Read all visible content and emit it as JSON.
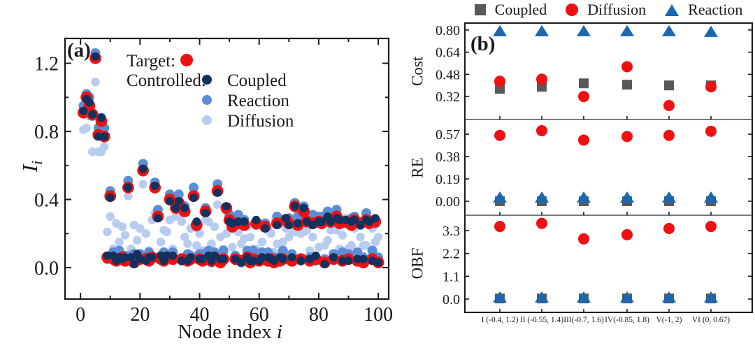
{
  "panel_a": {
    "label": "(a)",
    "xlabel_main": "Node index ",
    "xlabel_italic": "i",
    "ylabel_main": "I",
    "ylabel_sub": "i",
    "legend": {
      "target_label": "Target:",
      "controlled_label": "Controlled:",
      "target_color": "#ee1111",
      "items": [
        {
          "label": "Coupled",
          "color": "#13315f"
        },
        {
          "label": "Reaction",
          "color": "#5b8ed6"
        },
        {
          "label": "Diffusion",
          "color": "#b7cdf0"
        }
      ]
    }
  },
  "panel_b": {
    "label": "(b)",
    "legend": {
      "items": [
        {
          "label": "Coupled",
          "marker": "square",
          "color": "#595959"
        },
        {
          "label": "Diffusion",
          "marker": "circle",
          "color": "#ee1111"
        },
        {
          "label": "Reaction",
          "marker": "triangle",
          "color": "#1b67b1"
        }
      ]
    },
    "subplots": [
      {
        "ylabel": "Cost"
      },
      {
        "ylabel": "RE"
      },
      {
        "ylabel": "OBF"
      }
    ]
  },
  "chart_data": [
    {
      "id": "panel-a",
      "type": "scatter",
      "panel_label": "(a)",
      "xlabel": "Node index i",
      "ylabel": "I_i",
      "xlim": [
        -5.2,
        103.5
      ],
      "ylim": [
        -0.185,
        1.346
      ],
      "xtick_values": [
        0,
        20,
        40,
        60,
        80,
        100
      ],
      "xtick_labels": [
        "0",
        "20",
        "40",
        "60",
        "80",
        "100"
      ],
      "xtick_minor": [
        10,
        30,
        50,
        70,
        90
      ],
      "ytick_values": [
        0.0,
        0.4,
        0.8,
        1.2
      ],
      "ytick_labels": [
        "0.0",
        "0.4",
        "0.8",
        "1.2"
      ],
      "ytick_minor": [
        0.2,
        0.6,
        1.0
      ],
      "node_index_start": 1,
      "series": [
        {
          "name": "Diffusion",
          "marker": "circle",
          "color": "#b7cdf0",
          "radius": 6.2,
          "values": [
            0.81,
            0.82,
            0.89,
            0.68,
            1.09,
            0.68,
            0.68,
            0.71,
            0.21,
            0.3,
            0.11,
            0.26,
            0.15,
            0.24,
            0.19,
            0.42,
            0.11,
            0.25,
            0.16,
            0.23,
            0.49,
            0.2,
            0.1,
            0.28,
            0.32,
            0.32,
            0.15,
            0.22,
            0.21,
            0.28,
            0.11,
            0.3,
            0.3,
            0.27,
            0.18,
            0.14,
            0.23,
            0.44,
            0.13,
            0.2,
            0.1,
            0.28,
            0.27,
            0.14,
            0.24,
            0.37,
            0.18,
            0.11,
            0.2,
            0.3,
            0.12,
            0.27,
            0.21,
            0.14,
            0.17,
            0.24,
            0.18,
            0.11,
            0.11,
            0.26,
            0.15,
            0.26,
            0.22,
            0.2,
            0.09,
            0.14,
            0.26,
            0.15,
            0.23,
            0.18,
            0.22,
            0.21,
            0.27,
            0.2,
            0.21,
            0.22,
            0.1,
            0.18,
            0.27,
            0.12,
            0.28,
            0.13,
            0.16,
            0.22,
            0.23,
            0.22,
            0.11,
            0.19,
            0.29,
            0.11,
            0.13,
            0.23,
            0.26,
            0.18,
            0.13,
            0.13,
            0.28,
            0.23,
            0.15,
            0.18
          ]
        },
        {
          "name": "Reaction",
          "marker": "circle",
          "color": "#5b8ed6",
          "radius": 7.0,
          "values": [
            0.95,
            1.02,
            1.0,
            0.89,
            1.26,
            0.82,
            0.88,
            0.82,
            0.05,
            0.45,
            0.09,
            0.06,
            0.1,
            0.05,
            0.07,
            0.51,
            0.07,
            0.08,
            0.05,
            0.08,
            0.61,
            0.07,
            0.09,
            0.05,
            0.5,
            0.34,
            0.07,
            0.09,
            0.05,
            0.43,
            0.09,
            0.37,
            0.43,
            0.04,
            0.36,
            0.08,
            0.07,
            0.47,
            0.24,
            0.08,
            0.08,
            0.35,
            0.1,
            0.03,
            0.09,
            0.49,
            0.05,
            0.1,
            0.34,
            0.31,
            0.28,
            0.07,
            0.31,
            0.03,
            0.28,
            0.1,
            0.05,
            0.1,
            0.25,
            0.07,
            0.09,
            0.26,
            0.09,
            0.04,
            0.06,
            0.3,
            0.06,
            0.1,
            0.27,
            0.29,
            0.08,
            0.38,
            0.3,
            0.04,
            0.36,
            0.31,
            0.06,
            0.31,
            0.04,
            0.3,
            0.3,
            0.05,
            0.33,
            0.26,
            0.08,
            0.34,
            0.28,
            0.09,
            0.26,
            0.08,
            0.29,
            0.3,
            0.09,
            0.25,
            0.06,
            0.32,
            0.28,
            0.1,
            0.26,
            0.06
          ]
        },
        {
          "name": "Target",
          "marker": "circle",
          "color": "#ee1111",
          "radius": 8.4,
          "values": [
            0.91,
            1.0,
            0.95,
            0.9,
            1.23,
            0.78,
            0.86,
            0.77,
            0.06,
            0.42,
            0.05,
            0.04,
            0.05,
            0.06,
            0.04,
            0.47,
            0.05,
            0.03,
            0.06,
            0.05,
            0.57,
            0.05,
            0.04,
            0.06,
            0.47,
            0.3,
            0.05,
            0.04,
            0.06,
            0.4,
            0.05,
            0.35,
            0.38,
            0.05,
            0.33,
            0.04,
            0.05,
            0.42,
            0.25,
            0.05,
            0.04,
            0.33,
            0.05,
            0.04,
            0.06,
            0.45,
            0.03,
            0.05,
            0.35,
            0.28,
            0.24,
            0.05,
            0.26,
            0.04,
            0.25,
            0.06,
            0.03,
            0.05,
            0.26,
            0.04,
            0.05,
            0.24,
            0.04,
            0.05,
            0.03,
            0.26,
            0.04,
            0.05,
            0.28,
            0.26,
            0.04,
            0.36,
            0.25,
            0.05,
            0.33,
            0.27,
            0.04,
            0.26,
            0.05,
            0.27,
            0.26,
            0.03,
            0.28,
            0.27,
            0.05,
            0.3,
            0.26,
            0.04,
            0.27,
            0.05,
            0.25,
            0.28,
            0.04,
            0.26,
            0.03,
            0.28,
            0.26,
            0.05,
            0.27,
            0.03
          ]
        },
        {
          "name": "Coupled",
          "marker": "circle",
          "color": "#13315f",
          "radius": 6.0,
          "values": [
            0.92,
            0.99,
            0.97,
            0.9,
            1.24,
            0.77,
            0.88,
            0.77,
            0.07,
            0.41,
            0.07,
            0.04,
            0.06,
            0.05,
            0.06,
            0.47,
            0.06,
            0.02,
            0.08,
            0.05,
            0.58,
            0.04,
            0.06,
            0.06,
            0.48,
            0.29,
            0.07,
            0.04,
            0.07,
            0.39,
            0.07,
            0.35,
            0.39,
            0.04,
            0.35,
            0.04,
            0.06,
            0.41,
            0.27,
            0.05,
            0.05,
            0.32,
            0.07,
            0.04,
            0.07,
            0.44,
            0.05,
            0.05,
            0.36,
            0.27,
            0.26,
            0.05,
            0.27,
            0.03,
            0.27,
            0.06,
            0.04,
            0.04,
            0.28,
            0.04,
            0.06,
            0.23,
            0.06,
            0.05,
            0.04,
            0.25,
            0.06,
            0.05,
            0.29,
            0.25,
            0.06,
            0.36,
            0.26,
            0.04,
            0.35,
            0.27,
            0.05,
            0.25,
            0.07,
            0.27,
            0.27,
            0.02,
            0.3,
            0.27,
            0.06,
            0.29,
            0.28,
            0.04,
            0.28,
            0.04,
            0.27,
            0.28,
            0.05,
            0.25,
            0.05,
            0.28,
            0.27,
            0.04,
            0.29,
            0.03
          ]
        }
      ]
    },
    {
      "id": "cost",
      "type": "scatter",
      "ylabel": "Cost",
      "ylim": [
        0.154,
        0.85
      ],
      "ytick_values": [
        0.32,
        0.48,
        0.64,
        0.8
      ],
      "ytick_labels": [
        "0.32",
        "0.48",
        "0.64",
        "0.80"
      ],
      "categories": [
        "I (-0.4, 1.2)",
        "II (-0.55, 1.4)",
        "III(-0.7, 1.6)",
        "IV(-0.85, 1.8)",
        "V(-1, 2)",
        "VI (0, 0.67)"
      ],
      "series": [
        {
          "name": "Coupled",
          "marker": "square",
          "color": "#595959",
          "values": [
            0.375,
            0.39,
            0.415,
            0.405,
            0.4,
            0.4
          ]
        },
        {
          "name": "Diffusion",
          "marker": "circle",
          "color": "#ee1111",
          "values": [
            0.43,
            0.445,
            0.32,
            0.535,
            0.255,
            0.39
          ]
        },
        {
          "name": "Reaction",
          "marker": "triangle",
          "color": "#1b67b1",
          "values": [
            0.79,
            0.79,
            0.79,
            0.79,
            0.79,
            0.785
          ]
        }
      ]
    },
    {
      "id": "re",
      "type": "scatter",
      "ylabel": "RE",
      "ylim": [
        -0.119,
        0.695
      ],
      "ytick_values": [
        0.0,
        0.19,
        0.38,
        0.57
      ],
      "ytick_labels": [
        "0.00",
        "0.19",
        "0.38",
        "0.57"
      ],
      "categories": [
        "I (-0.4, 1.2)",
        "II (-0.55, 1.4)",
        "III(-0.7, 1.6)",
        "IV(-0.85, 1.8)",
        "V(-1, 2)",
        "VI (0, 0.67)"
      ],
      "series": [
        {
          "name": "Coupled",
          "marker": "square",
          "color": "#595959",
          "values": [
            0.0,
            0.0,
            0.0,
            0.0,
            0.0,
            0.0
          ]
        },
        {
          "name": "Diffusion",
          "marker": "circle",
          "color": "#ee1111",
          "values": [
            0.56,
            0.6,
            0.52,
            0.55,
            0.56,
            0.595
          ]
        },
        {
          "name": "Reaction",
          "marker": "triangle",
          "color": "#1b67b1",
          "values": [
            0.03,
            0.03,
            0.03,
            0.03,
            0.03,
            0.03
          ]
        }
      ]
    },
    {
      "id": "obf",
      "type": "scatter",
      "ylabel": "OBF",
      "ylim": [
        -0.64,
        4.04
      ],
      "ytick_values": [
        0.0,
        1.1,
        2.2,
        3.3
      ],
      "ytick_labels": [
        "0.0",
        "1.1",
        "2.2",
        "3.3"
      ],
      "show_category_labels": true,
      "categories": [
        "I (-0.4, 1.2)",
        "II (-0.55, 1.4)",
        "III(-0.7, 1.6)",
        "IV(-0.85, 1.8)",
        "V(-1, 2)",
        "VI (0, 0.67)"
      ],
      "series": [
        {
          "name": "Coupled",
          "marker": "square",
          "color": "#595959",
          "values": [
            0.03,
            0.03,
            0.03,
            0.03,
            0.03,
            0.03
          ]
        },
        {
          "name": "Diffusion",
          "marker": "circle",
          "color": "#ee1111",
          "values": [
            3.5,
            3.65,
            2.9,
            3.1,
            3.4,
            3.5
          ]
        },
        {
          "name": "Reaction",
          "marker": "triangle",
          "color": "#1b67b1",
          "values": [
            0.07,
            0.07,
            0.07,
            0.07,
            0.07,
            0.07
          ]
        }
      ]
    }
  ]
}
